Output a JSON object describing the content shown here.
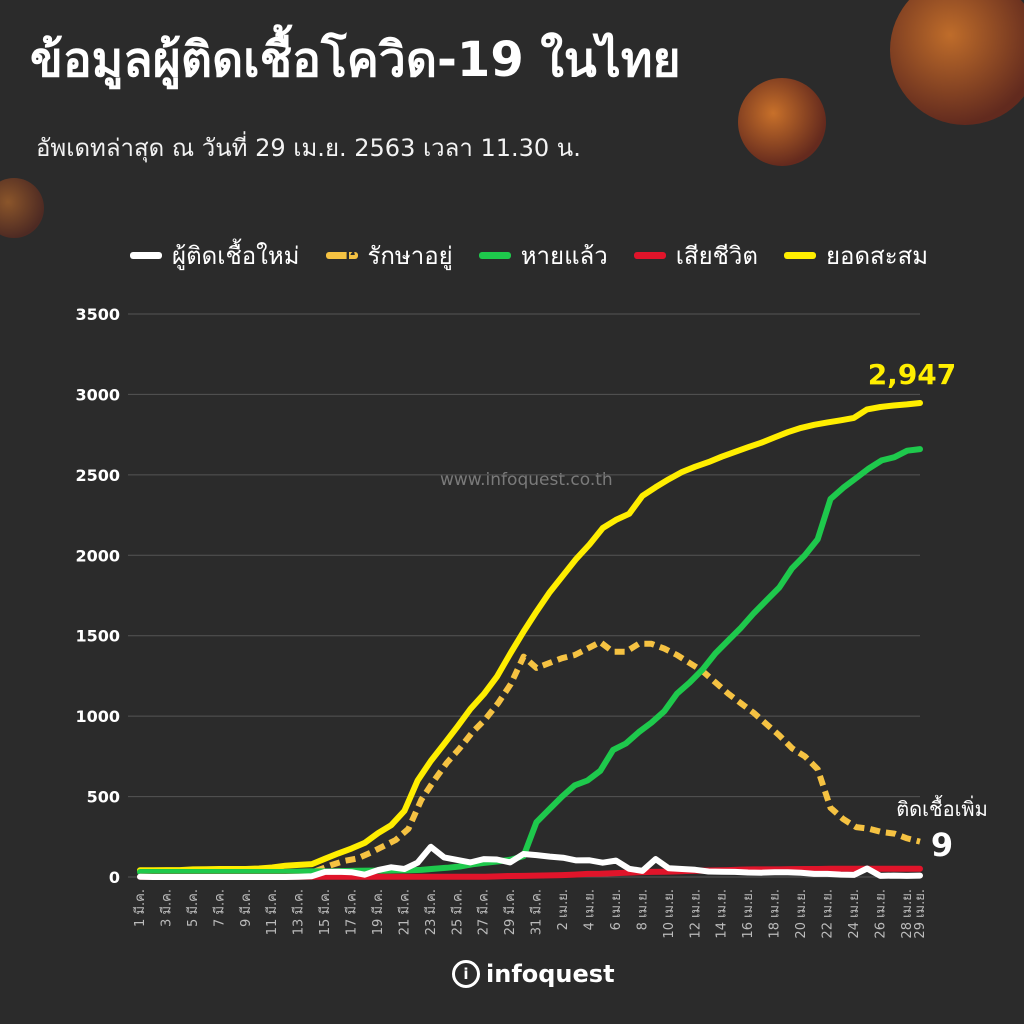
{
  "title": "ข้อมูลผู้ติดเชื้อโควิด-19 ในไทย",
  "subtitle": "อัพเดทล่าสุด ณ วันที่  29 เม.ย. 2563 เวลา 11.30 น.",
  "watermark": "www.infoquest.co.th",
  "brand": "infoquest",
  "brand_mark": "i",
  "colors": {
    "background": "#2b2b2b",
    "new_cases": "#ffffff",
    "active": "#f5c242",
    "recovered": "#1ec94c",
    "deaths": "#e0142a",
    "cumulative": "#ffee00",
    "grid": "#555555"
  },
  "chart_data": {
    "type": "line",
    "ylim": [
      0,
      3500
    ],
    "yticks": [
      0,
      500,
      1000,
      1500,
      2000,
      2500,
      3000,
      3500
    ],
    "xtick_labels": [
      "1 มี.ค.",
      "3 มี.ค.",
      "5 มี.ค.",
      "7 มี.ค.",
      "9 มี.ค.",
      "11 มี.ค.",
      "13 มี.ค.",
      "15 มี.ค.",
      "17 มี.ค.",
      "19 มี.ค.",
      "21 มี.ค.",
      "23 มี.ค.",
      "25 มี.ค.",
      "27 มี.ค.",
      "29 มี.ค.",
      "31 มี.ค.",
      "2 เม.ย.",
      "4 เม.ย.",
      "6 เม.ย.",
      "8 เม.ย.",
      "10 เม.ย.",
      "12 เม.ย.",
      "14 เม.ย.",
      "16 เม.ย.",
      "18 เม.ย.",
      "20 เม.ย.",
      "22 เม.ย.",
      "24 เม.ย.",
      "26 เม.ย.",
      "28 เม.ย.",
      "29 เม.ย."
    ],
    "series": [
      {
        "name": "ผู้ติดเชื้อใหม่",
        "style": "solid",
        "values": [
          1,
          0,
          0,
          0,
          0,
          0,
          0,
          0,
          0,
          0,
          0,
          0,
          2,
          5,
          32,
          33,
          30,
          14,
          43,
          60,
          50,
          89,
          188,
          122,
          106,
          91,
          111,
          109,
          91,
          143,
          136,
          127,
          120,
          103,
          104,
          89,
          102,
          51,
          38,
          111,
          54,
          50,
          45,
          34,
          33,
          32,
          28,
          27,
          30,
          29,
          27,
          19,
          19,
          15,
          13,
          53,
          7,
          9,
          7,
          9
        ]
      },
      {
        "name": "รักษาอยู่",
        "style": "dashed",
        "values": [
          8,
          8,
          8,
          8,
          8,
          8,
          8,
          8,
          8,
          8,
          8,
          8,
          10,
          15,
          45,
          75,
          100,
          115,
          150,
          190,
          230,
          300,
          480,
          600,
          710,
          800,
          900,
          980,
          1080,
          1200,
          1370,
          1300,
          1330,
          1360,
          1380,
          1420,
          1460,
          1400,
          1400,
          1450,
          1450,
          1420,
          1380,
          1330,
          1280,
          1210,
          1140,
          1080,
          1020,
          950,
          880,
          800,
          750,
          670,
          430,
          360,
          310,
          300,
          280,
          270,
          240,
          220
        ]
      },
      {
        "name": "หายแล้ว",
        "style": "solid",
        "values": [
          31,
          31,
          31,
          31,
          31,
          31,
          31,
          31,
          31,
          31,
          31,
          31,
          33,
          35,
          35,
          35,
          37,
          39,
          40,
          40,
          41,
          42,
          44,
          51,
          57,
          65,
          79,
          88,
          97,
          108,
          130,
          340,
          420,
          500,
          570,
          600,
          660,
          790,
          830,
          900,
          960,
          1030,
          1140,
          1210,
          1290,
          1390,
          1470,
          1550,
          1640,
          1720,
          1800,
          1920,
          2000,
          2100,
          2350,
          2420,
          2480,
          2540,
          2590,
          2610,
          2650,
          2660
        ]
      },
      {
        "name": "เสียชีวิต",
        "style": "solid",
        "values": [
          1,
          1,
          1,
          1,
          1,
          1,
          1,
          1,
          1,
          1,
          1,
          1,
          1,
          1,
          1,
          1,
          1,
          1,
          1,
          1,
          1,
          1,
          1,
          1,
          1,
          1,
          1,
          1,
          4,
          6,
          7,
          9,
          10,
          12,
          15,
          19,
          20,
          23,
          26,
          30,
          32,
          33,
          35,
          38,
          40,
          41,
          43,
          46,
          47,
          47,
          47,
          49,
          50,
          50,
          51,
          51,
          51,
          51,
          51,
          51,
          51,
          51
        ]
      },
      {
        "name": "ยอดสะสม",
        "style": "solid",
        "values": [
          42,
          42,
          43,
          43,
          47,
          48,
          50,
          50,
          50,
          53,
          59,
          70,
          75,
          80,
          114,
          147,
          177,
          212,
          272,
          322,
          411,
          599,
          721,
          827,
          934,
          1045,
          1136,
          1245,
          1388,
          1524,
          1651,
          1771,
          1875,
          1978,
          2067,
          2169,
          2220,
          2258,
          2369,
          2423,
          2473,
          2518,
          2551,
          2579,
          2613,
          2643,
          2672,
          2700,
          2733,
          2765,
          2792,
          2811,
          2826,
          2839,
          2854,
          2907,
          2922,
          2931,
          2938,
          2947
        ]
      }
    ],
    "annotations": [
      {
        "text": "2,947"
      },
      {
        "text": "ติดเชื้อเพิ่ม"
      },
      {
        "text": "9"
      }
    ]
  }
}
